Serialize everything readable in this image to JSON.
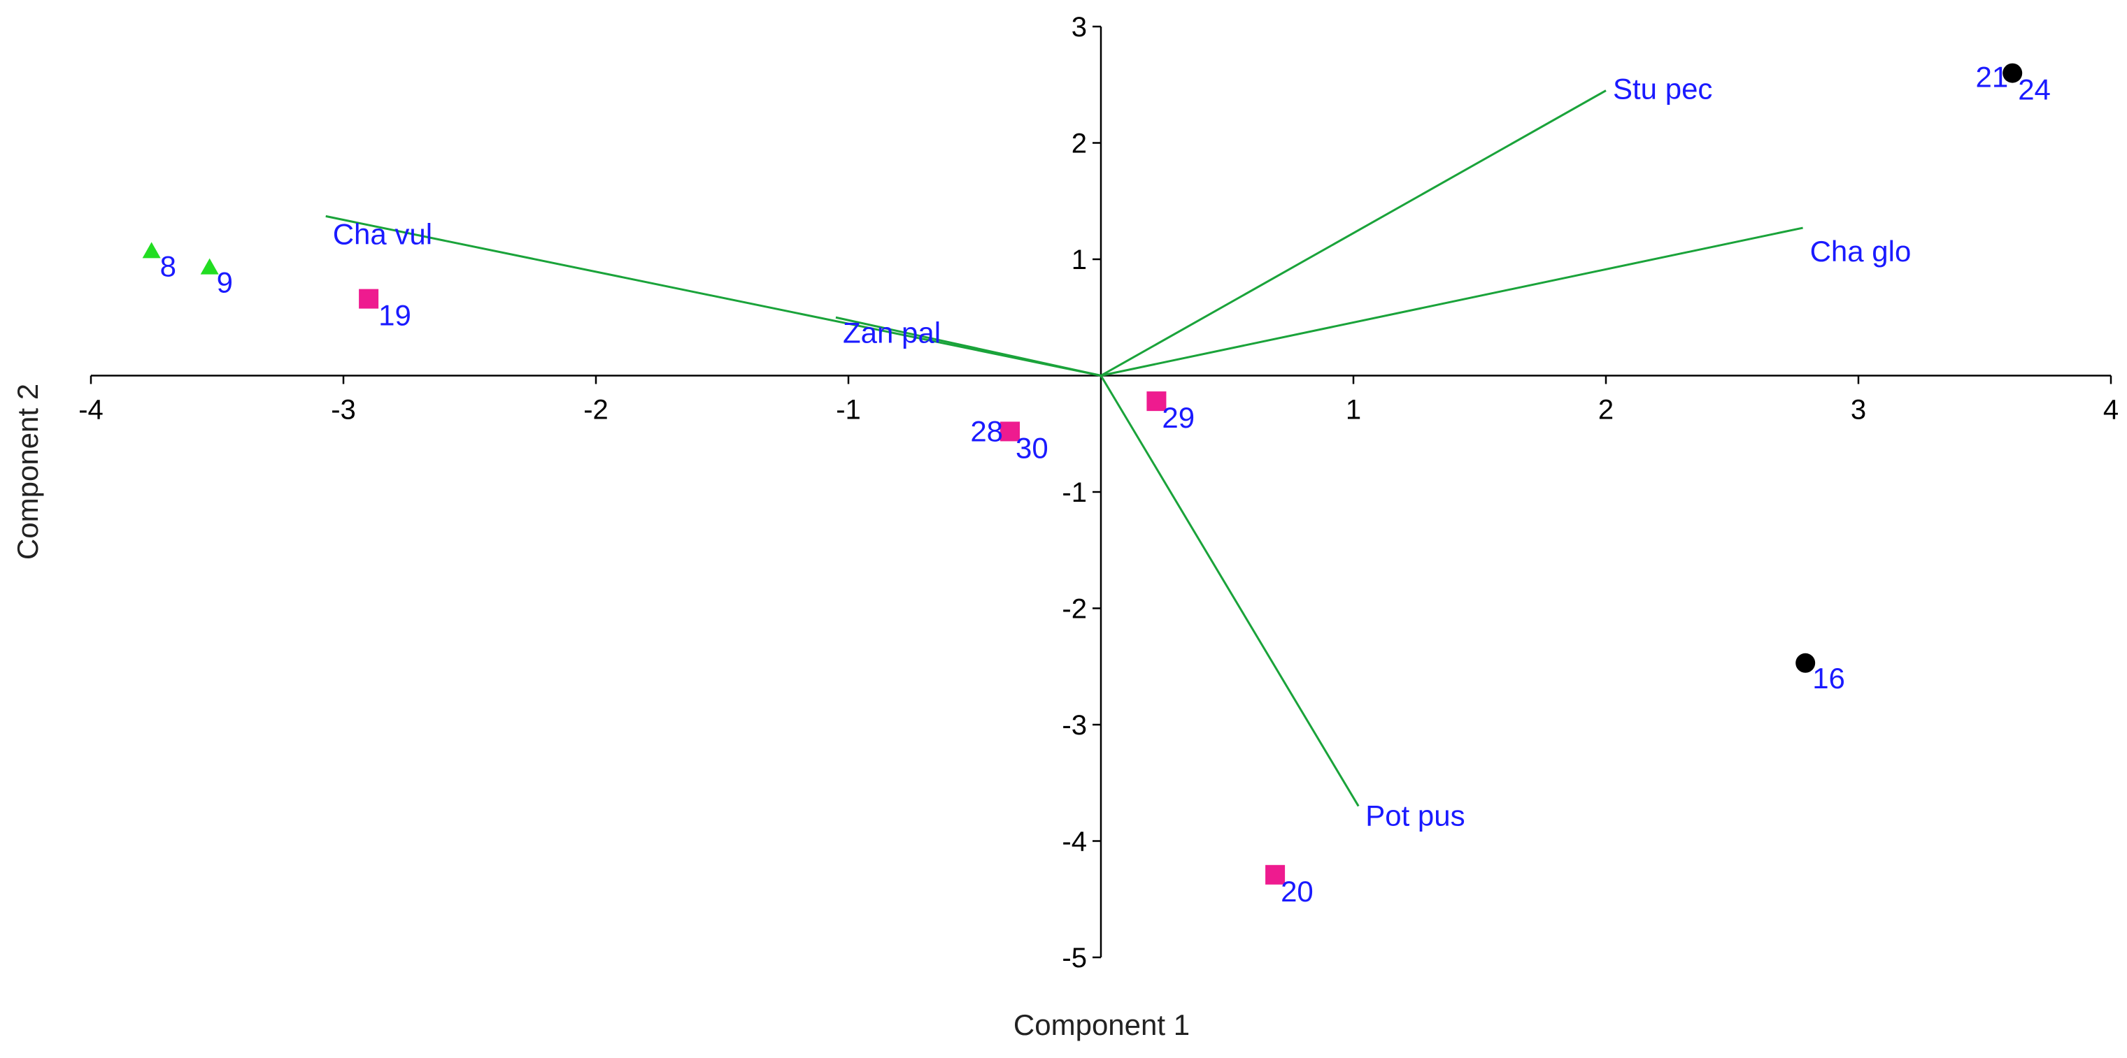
{
  "chart_data": {
    "type": "scatter",
    "subtype": "pca-biplot",
    "title": "",
    "xlabel": "Component 1",
    "ylabel": "Component 2",
    "xlim": [
      -4,
      4
    ],
    "ylim": [
      -5,
      3
    ],
    "xticks": [
      -4,
      -3,
      -2,
      -1,
      1,
      2,
      3,
      4
    ],
    "yticks": [
      3,
      2,
      1,
      -1,
      -2,
      -3,
      -4,
      -5
    ],
    "grid": false,
    "legend": "none",
    "colors": {
      "vector": "#1aa33a",
      "label_text": "#1a1aff",
      "group_triangle": "#22dd22",
      "group_square": "#ee1b8f",
      "group_circle": "#000000"
    },
    "vectors": [
      {
        "name": "Stu pec",
        "x": 2.0,
        "y": 2.45
      },
      {
        "name": "Cha glo",
        "x": 2.78,
        "y": 1.27
      },
      {
        "name": "Cha vul",
        "x": -3.07,
        "y": 1.37
      },
      {
        "name": "Zan pal",
        "x": -1.05,
        "y": 0.5
      },
      {
        "name": "Pot pus",
        "x": 1.02,
        "y": -3.7
      }
    ],
    "points": [
      {
        "label": "8",
        "x": -3.76,
        "y": 1.07,
        "marker": "triangle"
      },
      {
        "label": "9",
        "x": -3.53,
        "y": 0.93,
        "marker": "triangle"
      },
      {
        "label": "19",
        "x": -2.9,
        "y": 0.66,
        "marker": "square"
      },
      {
        "label": "28",
        "x": -0.36,
        "y": -0.48,
        "marker": "square"
      },
      {
        "label": "30",
        "x": -0.36,
        "y": -0.48,
        "marker": "square"
      },
      {
        "label": "29",
        "x": 0.22,
        "y": -0.22,
        "marker": "square"
      },
      {
        "label": "20",
        "x": 0.69,
        "y": -4.29,
        "marker": "square"
      },
      {
        "label": "21",
        "x": 3.61,
        "y": 2.6,
        "marker": "circle"
      },
      {
        "label": "24",
        "x": 3.61,
        "y": 2.6,
        "marker": "circle"
      },
      {
        "label": "16",
        "x": 2.79,
        "y": -2.47,
        "marker": "circle"
      }
    ]
  }
}
